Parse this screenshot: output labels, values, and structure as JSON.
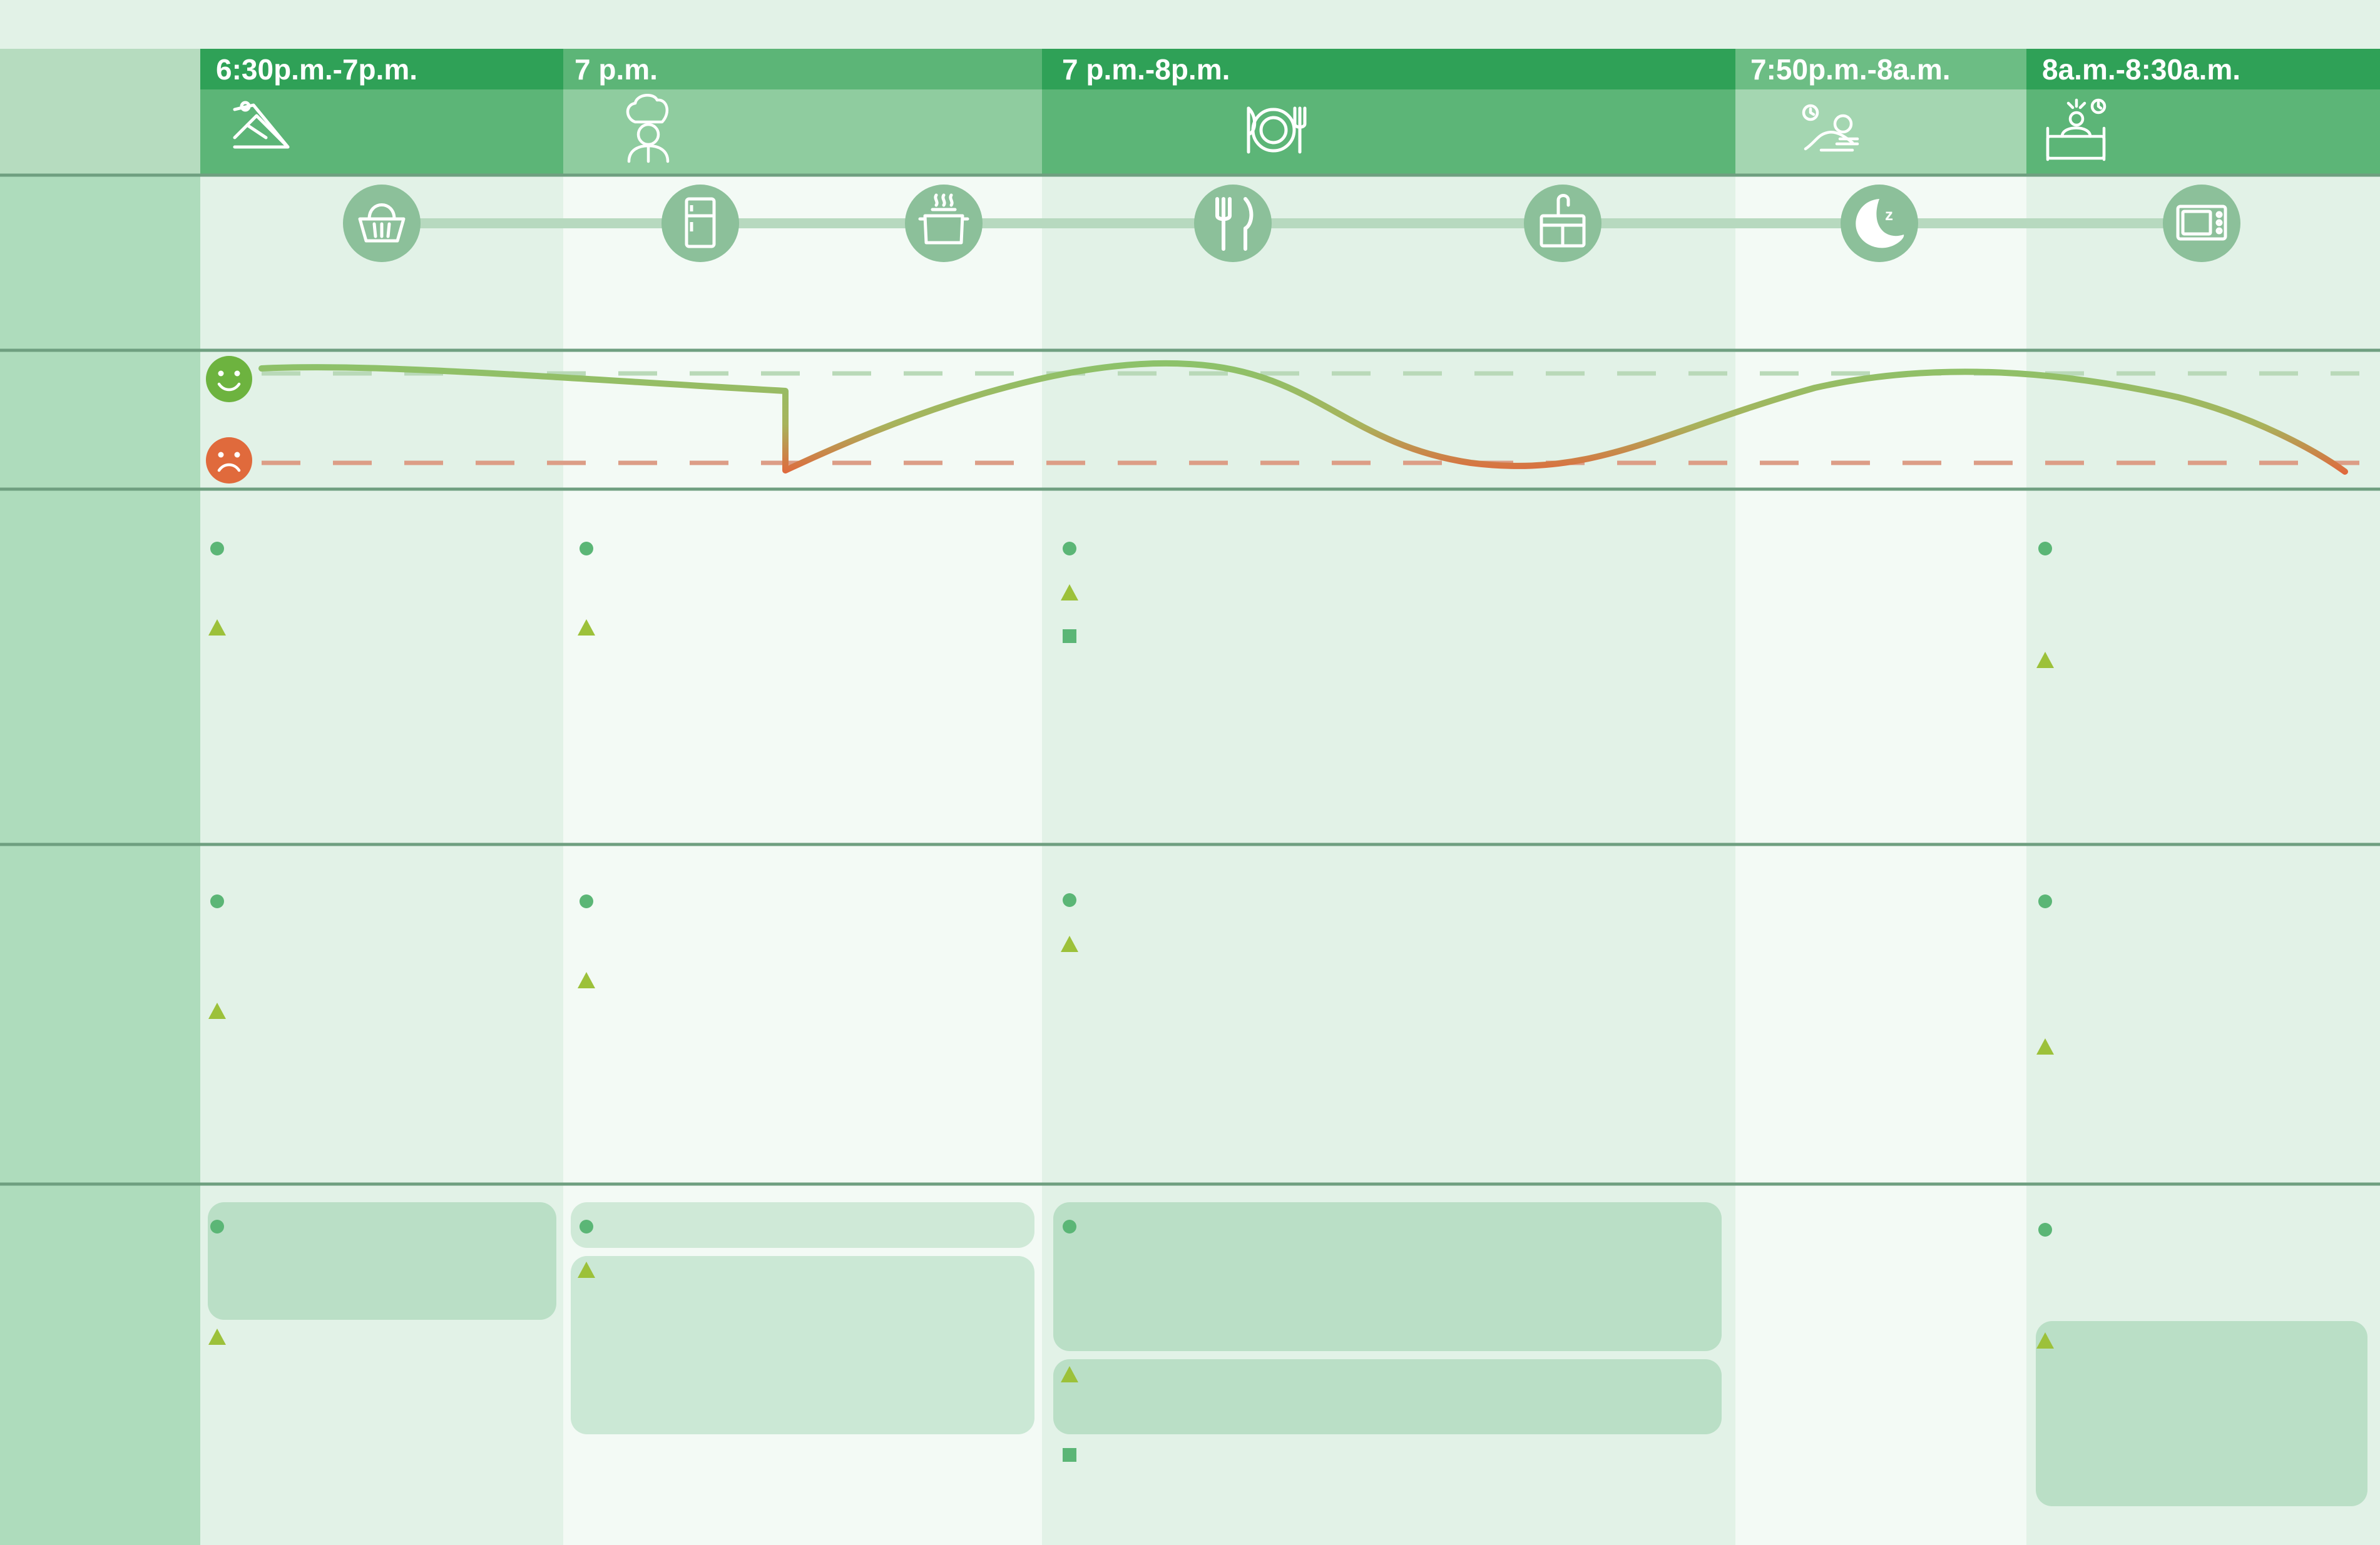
{
  "phases": [
    {
      "label": "6:30p.m.-7p.m.",
      "icon": "slide-icon"
    },
    {
      "label": "7 p.m.",
      "icon": "chef-icon"
    },
    {
      "label": "7 p.m.-8p.m.",
      "icon": "plate-fork-knife-icon"
    },
    {
      "label": "7:50p.m.-8a.m.",
      "icon": "sleeping-person-icon"
    },
    {
      "label": "8a.m.-8:30a.m.",
      "icon": "waking-up-bed-icon"
    }
  ],
  "touchpoints": [
    "basket-icon",
    "fridge-icon",
    "cooking-pot-icon",
    "fork-knife-icon",
    "sink-icon",
    "moon-icon",
    "microwave-icon"
  ],
  "emotion_levels": [
    "happy-face-icon",
    "sad-face-icon"
  ],
  "colors": {
    "header_dark": "#2fa157",
    "header_mid": "#5cb577",
    "header_light": "#8fcc9f",
    "header_pale": "#a4d6b1",
    "lane": "#aedcbc",
    "row_divider": "#6f9f80",
    "touchpoint_circle": "#8cc09a",
    "happy": "#6db33f",
    "sad": "#e06a3c",
    "bullet_dot": "#5bb676",
    "bullet_triangle": "#9cc13a",
    "bullet_square": "#5bb676",
    "card": "#badfc6"
  }
}
